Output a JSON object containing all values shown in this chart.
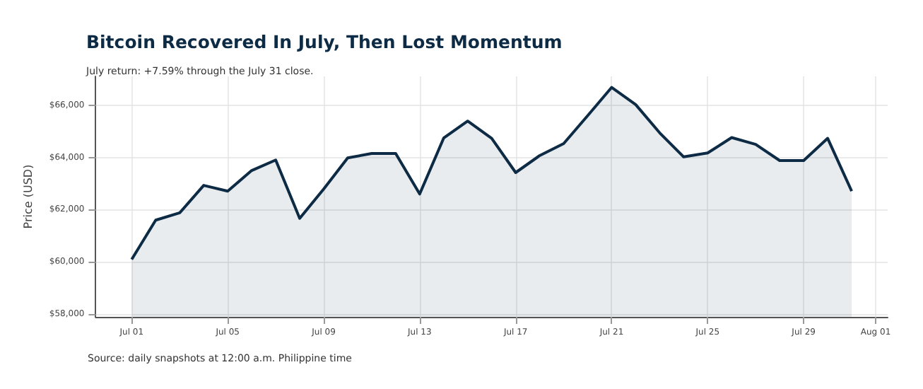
{
  "chart_data": {
    "type": "area",
    "title": "Bitcoin Recovered In July, Then Lost Momentum",
    "subtitle": "July return: +7.59% through the July 31 close.",
    "ylabel": "Price (USD)",
    "annotations": [
      "Source: daily snapshots at 12:00 a.m. Philippine time"
    ],
    "x": [
      "--07-01",
      "--07-02",
      "--07-03",
      "--07-04",
      "--07-05",
      "--07-06",
      "--07-07",
      "--07-08",
      "--07-09",
      "--07-10",
      "--07-11",
      "--07-12",
      "--07-13",
      "--07-14",
      "--07-15",
      "--07-16",
      "--07-17",
      "--07-18",
      "--07-19",
      "--07-20",
      "--07-21",
      "--07-22",
      "--07-23",
      "--07-24",
      "--07-25",
      "--07-26",
      "--07-27",
      "--07-28",
      "--07-29",
      "--07-30",
      "--07-31"
    ],
    "series": [
      {
        "color": "#0d2b45",
        "values": [
          60100,
          61600,
          61880,
          62930,
          62710,
          63500,
          63900,
          61670,
          62790,
          63980,
          64150,
          64150,
          62600,
          64740,
          65390,
          64730,
          63420,
          64070,
          64530,
          65600,
          66680,
          66020,
          64940,
          64020,
          64170,
          64760,
          64500,
          63880,
          63880,
          64730,
          62710
        ]
      }
    ],
    "xlim": [
      "--06-29T12:00",
      "--08-01T12:00"
    ],
    "xticks": [
      {
        "value": "--07-01",
        "label": "Jul 01"
      },
      {
        "value": "--07-05",
        "label": "Jul 05"
      },
      {
        "value": "--07-09",
        "label": "Jul 09"
      },
      {
        "value": "--07-13",
        "label": "Jul 13"
      },
      {
        "value": "--07-17",
        "label": "Jul 17"
      },
      {
        "value": "--07-21",
        "label": "Jul 21"
      },
      {
        "value": "--07-25",
        "label": "Jul 25"
      },
      {
        "value": "--07-29",
        "label": "Jul 29"
      },
      {
        "value": "--08-01",
        "label": "Aug 01"
      }
    ],
    "ylim": [
      57900,
      67100
    ],
    "yticks": [
      {
        "value": 58000,
        "label": "$58,000"
      },
      {
        "value": 60000,
        "label": "$60,000"
      },
      {
        "value": 62000,
        "label": "$62,000"
      },
      {
        "value": 64000,
        "label": "$64,000"
      },
      {
        "value": 66000,
        "label": "$66,000"
      }
    ],
    "grid": true,
    "marker": "none",
    "line_style": "solid"
  }
}
